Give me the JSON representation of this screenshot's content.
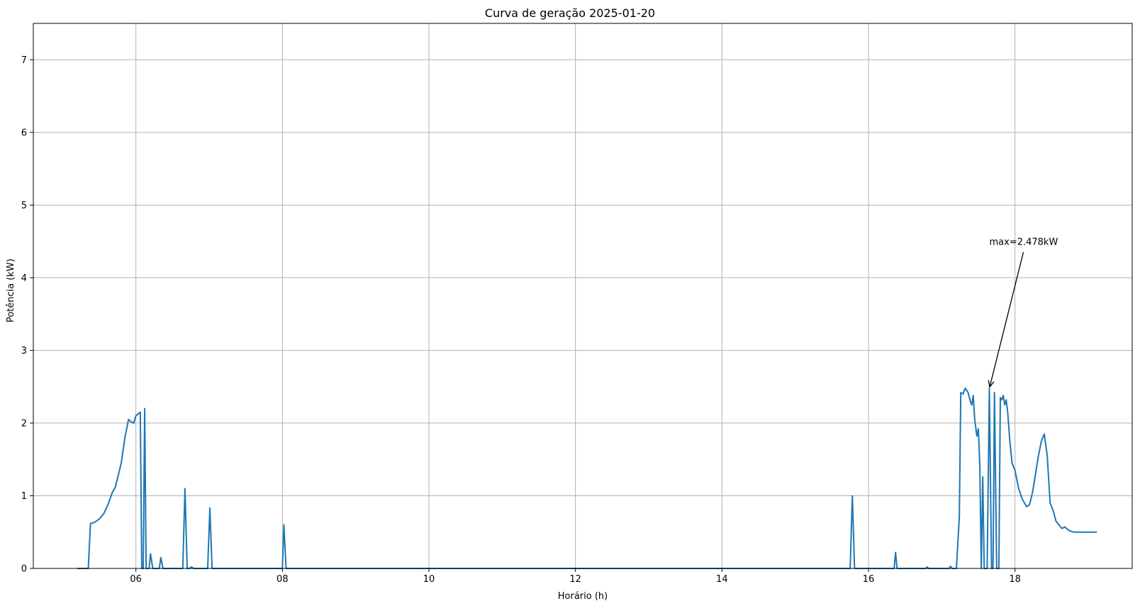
{
  "chart_data": {
    "type": "line",
    "title": "Curva de geração 2025-01-20",
    "xlabel": "Horário (h)",
    "ylabel": "Potência (kW)",
    "xlim": [
      4.6,
      19.6
    ],
    "ylim": [
      0,
      7.5
    ],
    "grid": true,
    "x_ticks": [
      6,
      8,
      10,
      12,
      14,
      16,
      18
    ],
    "x_tick_labels": [
      "06",
      "08",
      "10",
      "12",
      "14",
      "16",
      "18"
    ],
    "y_ticks": [
      0,
      1,
      2,
      3,
      4,
      5,
      6,
      7
    ],
    "y_tick_labels": [
      "0",
      "1",
      "2",
      "3",
      "4",
      "5",
      "6",
      "7"
    ],
    "colors": {
      "line": "#1f77b4",
      "grid": "#b0b0b0",
      "axis": "#000000",
      "annotation": "#000000"
    },
    "annotation": {
      "text": "max=2.478kW",
      "point": [
        17.65,
        2.478
      ],
      "text_pos": [
        17.65,
        4.45
      ]
    },
    "series": [
      {
        "points": [
          [
            5.2,
            0
          ],
          [
            5.35,
            0
          ],
          [
            5.38,
            0.62
          ],
          [
            5.43,
            0.63
          ],
          [
            5.5,
            0.68
          ],
          [
            5.56,
            0.75
          ],
          [
            5.62,
            0.88
          ],
          [
            5.68,
            1.05
          ],
          [
            5.72,
            1.12
          ],
          [
            5.8,
            1.45
          ],
          [
            5.85,
            1.8
          ],
          [
            5.9,
            2.05
          ],
          [
            5.93,
            2.02
          ],
          [
            5.97,
            2.0
          ],
          [
            6.0,
            2.1
          ],
          [
            6.06,
            2.15
          ],
          [
            6.08,
            0
          ],
          [
            6.1,
            0
          ],
          [
            6.12,
            2.2
          ],
          [
            6.14,
            0
          ],
          [
            6.18,
            0
          ],
          [
            6.2,
            0.2
          ],
          [
            6.23,
            0
          ],
          [
            6.32,
            0
          ],
          [
            6.34,
            0.15
          ],
          [
            6.37,
            0
          ],
          [
            6.64,
            0
          ],
          [
            6.67,
            1.1
          ],
          [
            6.7,
            0
          ],
          [
            6.73,
            0
          ],
          [
            6.76,
            0.02
          ],
          [
            6.79,
            0
          ],
          [
            6.98,
            0
          ],
          [
            7.01,
            0.83
          ],
          [
            7.04,
            0
          ],
          [
            8.0,
            0
          ],
          [
            8.02,
            0.6
          ],
          [
            8.05,
            0
          ],
          [
            15.75,
            0
          ],
          [
            15.78,
            1.0
          ],
          [
            15.81,
            0
          ],
          [
            16.35,
            0
          ],
          [
            16.37,
            0.22
          ],
          [
            16.39,
            0
          ],
          [
            16.78,
            0
          ],
          [
            16.8,
            0.02
          ],
          [
            16.82,
            0
          ],
          [
            17.1,
            0
          ],
          [
            17.12,
            0.03
          ],
          [
            17.14,
            0
          ],
          [
            17.2,
            0
          ],
          [
            17.24,
            0.7
          ],
          [
            17.26,
            2.42
          ],
          [
            17.29,
            2.4
          ],
          [
            17.32,
            2.48
          ],
          [
            17.36,
            2.42
          ],
          [
            17.39,
            2.3
          ],
          [
            17.41,
            2.25
          ],
          [
            17.43,
            2.38
          ],
          [
            17.45,
            2.05
          ],
          [
            17.48,
            1.82
          ],
          [
            17.5,
            1.92
          ],
          [
            17.52,
            1.4
          ],
          [
            17.54,
            0
          ],
          [
            17.56,
            1.26
          ],
          [
            17.58,
            0
          ],
          [
            17.62,
            0
          ],
          [
            17.65,
            2.478
          ],
          [
            17.68,
            0
          ],
          [
            17.7,
            0
          ],
          [
            17.72,
            2.42
          ],
          [
            17.75,
            0
          ],
          [
            17.78,
            0
          ],
          [
            17.8,
            2.35
          ],
          [
            17.82,
            2.32
          ],
          [
            17.84,
            2.38
          ],
          [
            17.86,
            2.25
          ],
          [
            17.88,
            2.32
          ],
          [
            17.9,
            2.15
          ],
          [
            17.93,
            1.75
          ],
          [
            17.96,
            1.45
          ],
          [
            18.0,
            1.35
          ],
          [
            18.05,
            1.1
          ],
          [
            18.1,
            0.95
          ],
          [
            18.16,
            0.85
          ],
          [
            18.2,
            0.88
          ],
          [
            18.24,
            1.05
          ],
          [
            18.28,
            1.3
          ],
          [
            18.32,
            1.55
          ],
          [
            18.36,
            1.75
          ],
          [
            18.4,
            1.85
          ],
          [
            18.44,
            1.55
          ],
          [
            18.48,
            0.9
          ],
          [
            18.52,
            0.8
          ],
          [
            18.56,
            0.65
          ],
          [
            18.6,
            0.6
          ],
          [
            18.64,
            0.55
          ],
          [
            18.68,
            0.57
          ],
          [
            18.74,
            0.52
          ],
          [
            18.8,
            0.5
          ],
          [
            18.88,
            0.5
          ],
          [
            18.96,
            0.5
          ],
          [
            19.05,
            0.5
          ],
          [
            19.12,
            0.5
          ]
        ]
      }
    ]
  }
}
